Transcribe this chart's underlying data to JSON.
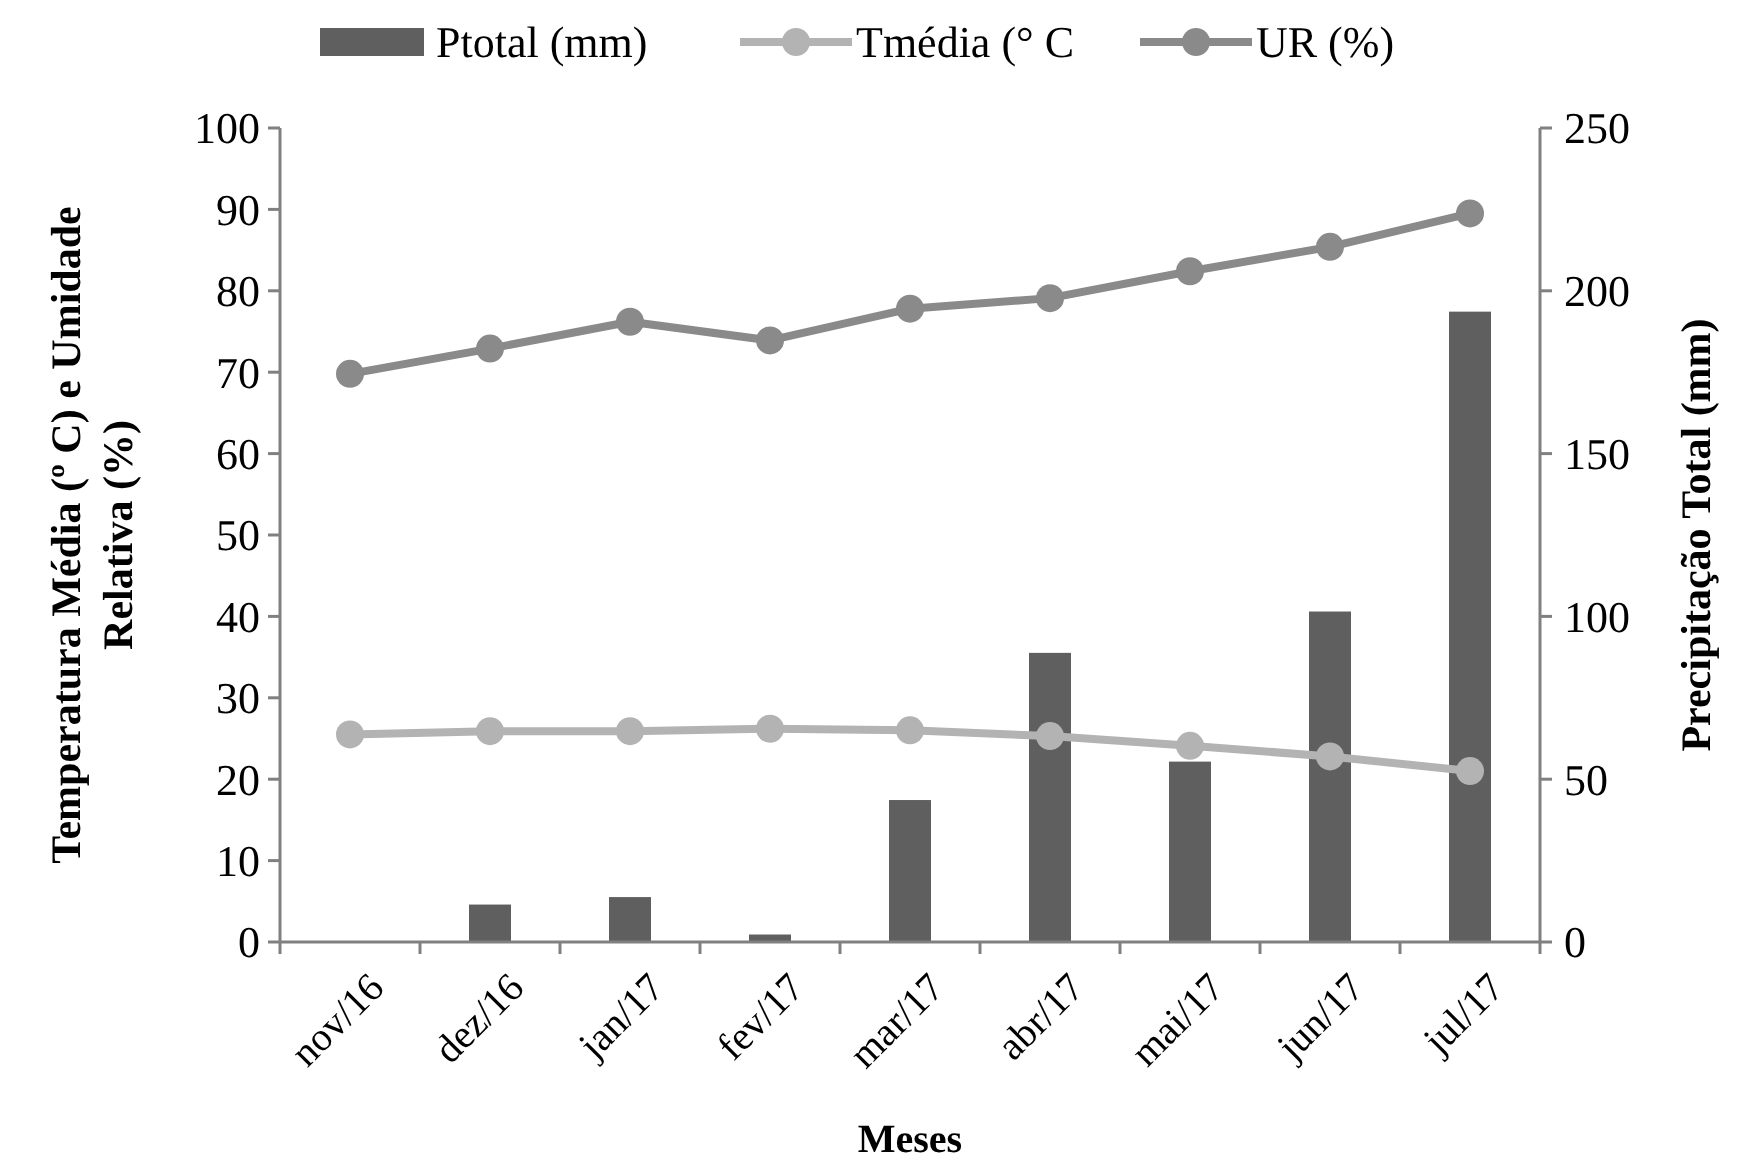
{
  "chart_data": {
    "type": "bar",
    "categories": [
      "nov/16",
      "dez/16",
      "jan/17",
      "fev/17",
      "mar/17",
      "abr/17",
      "mai/17",
      "jun/17",
      "jul/17"
    ],
    "series": [
      {
        "name": "Ptotal (mm)",
        "axis": "y2",
        "color": "#5f5f5f",
        "values": [
          0,
          11.5,
          13.8,
          2.3,
          43.6,
          88.8,
          55.4,
          101.5,
          193.6
        ]
      },
      {
        "name": "Tmédia (° C",
        "type": "line",
        "color": "#b3b3b3",
        "values": [
          25.5,
          25.9,
          25.9,
          26.2,
          26.0,
          25.3,
          24.1,
          22.8,
          21.0
        ]
      },
      {
        "name": "UR (%)",
        "type": "line",
        "color": "#8a8a8a",
        "values": [
          69.8,
          72.9,
          76.2,
          73.9,
          77.8,
          79.1,
          82.4,
          85.4,
          89.5
        ]
      }
    ],
    "xlabel": "Meses",
    "ylabel": "Temperatura Média (º C) e Umidade Relativa (%)",
    "y2label": "Precipitação Total (mm)",
    "ylim": [
      0,
      100
    ],
    "yticks": [
      0,
      10,
      20,
      30,
      40,
      50,
      60,
      70,
      80,
      90,
      100
    ],
    "y2lim": [
      0,
      250
    ],
    "y2ticks": [
      0,
      50,
      100,
      150,
      200,
      250
    ],
    "legend": "top",
    "marker": "circle",
    "grid": false
  }
}
